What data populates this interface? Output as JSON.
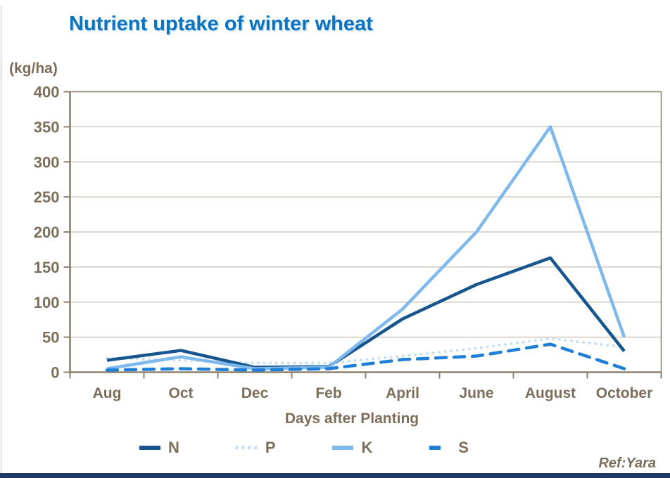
{
  "title": "Nutrient uptake of winter wheat",
  "y_axis_unit_label": "(kg/ha)",
  "x_axis_title": "Days after Planting",
  "ref_label": "Ref:Yara",
  "colors": {
    "title": "#0b73c0",
    "axis_text": "#7d6e5b",
    "axis_line": "#8e8070",
    "gridline": "#c8bfb2",
    "bottom_bar": "#1e3968",
    "n_series": "#17558e",
    "p_series": "#c7e0f6",
    "k_series": "#7db9ec",
    "s_series": "#1f7fd6"
  },
  "chart_data": {
    "type": "line",
    "title": "Nutrient uptake of winter wheat",
    "xlabel": "Days after Planting",
    "ylabel": "(kg/ha)",
    "ylim": [
      0,
      400
    ],
    "yticks": [
      0,
      50,
      100,
      150,
      200,
      250,
      300,
      350,
      400
    ],
    "grid": "horizontal",
    "legend_position": "bottom",
    "categories": [
      "Aug",
      "Oct",
      "Dec",
      "Feb",
      "April",
      "June",
      "August",
      "October"
    ],
    "series": [
      {
        "name": "N",
        "style": "solid",
        "color": "#17558e",
        "values": [
          17,
          31,
          7,
          8,
          76,
          125,
          163,
          30
        ]
      },
      {
        "name": "P",
        "style": "dotted",
        "color": "#c7e0f6",
        "values": [
          20,
          17,
          13,
          13,
          23,
          34,
          48,
          36
        ]
      },
      {
        "name": "K",
        "style": "solid",
        "color": "#7db9ec",
        "values": [
          5,
          22,
          5,
          7,
          90,
          200,
          350,
          50
        ]
      },
      {
        "name": "S",
        "style": "dashed",
        "color": "#1f7fd6",
        "values": [
          3,
          5,
          3,
          5,
          18,
          23,
          40,
          5
        ]
      }
    ]
  }
}
